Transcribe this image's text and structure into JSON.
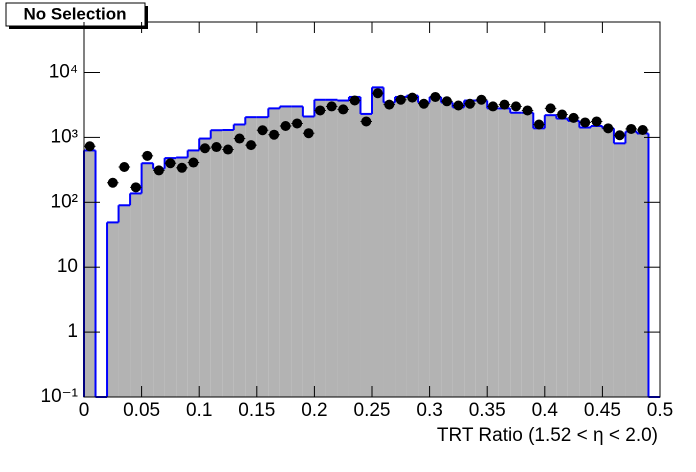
{
  "chart_data": {
    "type": "histogram",
    "title": "No Selection",
    "x_label": "TRT Ratio (1.52 <  η < 2.0)",
    "bins": [
      0,
      0.01,
      0.02,
      0.03,
      0.04,
      0.05,
      0.06,
      0.07,
      0.08,
      0.09,
      0.1,
      0.11,
      0.12,
      0.13,
      0.14,
      0.15,
      0.16,
      0.17,
      0.18,
      0.19,
      0.2,
      0.21,
      0.22,
      0.23,
      0.24,
      0.25,
      0.26,
      0.27,
      0.28,
      0.29,
      0.3,
      0.31,
      0.32,
      0.33,
      0.34,
      0.35,
      0.36,
      0.37,
      0.38,
      0.39,
      0.4,
      0.41,
      0.42,
      0.43,
      0.44,
      0.45,
      0.46,
      0.47,
      0.48,
      0.49,
      0.5
    ],
    "series": [
      {
        "color": "#b3b3b3",
        "edgecolor": "#0000ff",
        "style": "filled-step",
        "values": [
          630,
          0,
          49,
          90,
          137,
          400,
          330,
          480,
          490,
          630,
          960,
          1290,
          1300,
          1580,
          2050,
          2050,
          2800,
          3000,
          3000,
          2100,
          3800,
          3800,
          3700,
          4200,
          2300,
          5900,
          3450,
          4200,
          4400,
          3450,
          4200,
          3450,
          2900,
          3700,
          3700,
          2800,
          2800,
          2400,
          2400,
          1380,
          2200,
          1950,
          1800,
          1420,
          1500,
          1380,
          810,
          1230,
          1150,
          0
        ]
      },
      {
        "color": "#000000",
        "style": "points",
        "values": [
          730,
          null,
          200,
          350,
          170,
          520,
          310,
          400,
          340,
          410,
          680,
          710,
          650,
          960,
          760,
          1290,
          1100,
          1500,
          1640,
          1160,
          2600,
          3000,
          2700,
          3700,
          1760,
          4800,
          3200,
          3800,
          4100,
          3300,
          4200,
          3600,
          3100,
          3300,
          3800,
          3000,
          3200,
          3000,
          2600,
          1580,
          2800,
          2250,
          2000,
          1700,
          1760,
          1380,
          1080,
          1350,
          1300,
          null
        ]
      }
    ],
    "xlim": [
      0,
      0.5
    ],
    "xticks": [
      0,
      0.05,
      0.1,
      0.15,
      0.2,
      0.25,
      0.3,
      0.35,
      0.4,
      0.45,
      0.5
    ],
    "ylim": [
      0.1,
      60000
    ],
    "log_y": true,
    "yticks": [
      {
        "value": 0.1,
        "label": "10⁻¹"
      },
      1,
      10,
      {
        "value": 100,
        "label": "10²"
      },
      {
        "value": 1000,
        "label": "10³"
      },
      {
        "value": 10000,
        "label": "10⁴"
      }
    ]
  }
}
